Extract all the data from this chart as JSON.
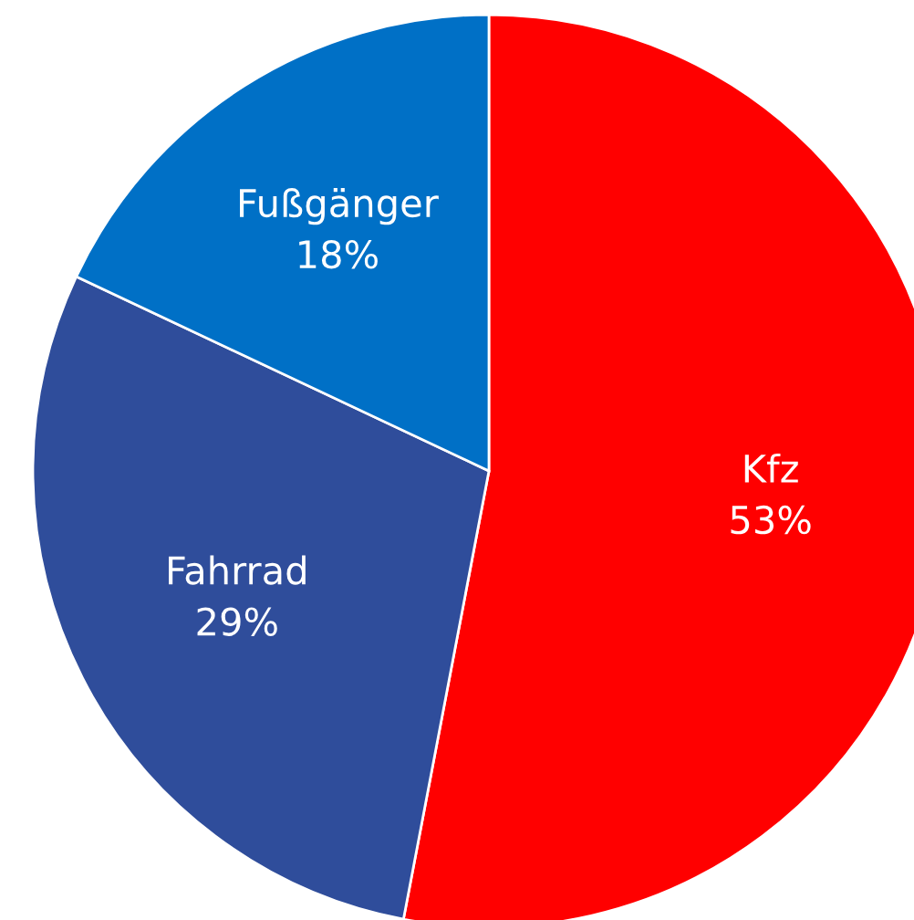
{
  "chart_data": {
    "type": "pie",
    "categories": [
      "Kfz",
      "Fahrrad",
      "Fußgänger"
    ],
    "values": [
      53,
      29,
      18
    ],
    "value_labels": [
      "53%",
      "29%",
      "18%"
    ],
    "colors": [
      "#ff0000",
      "#2f4d9b",
      "#0070c6"
    ]
  }
}
